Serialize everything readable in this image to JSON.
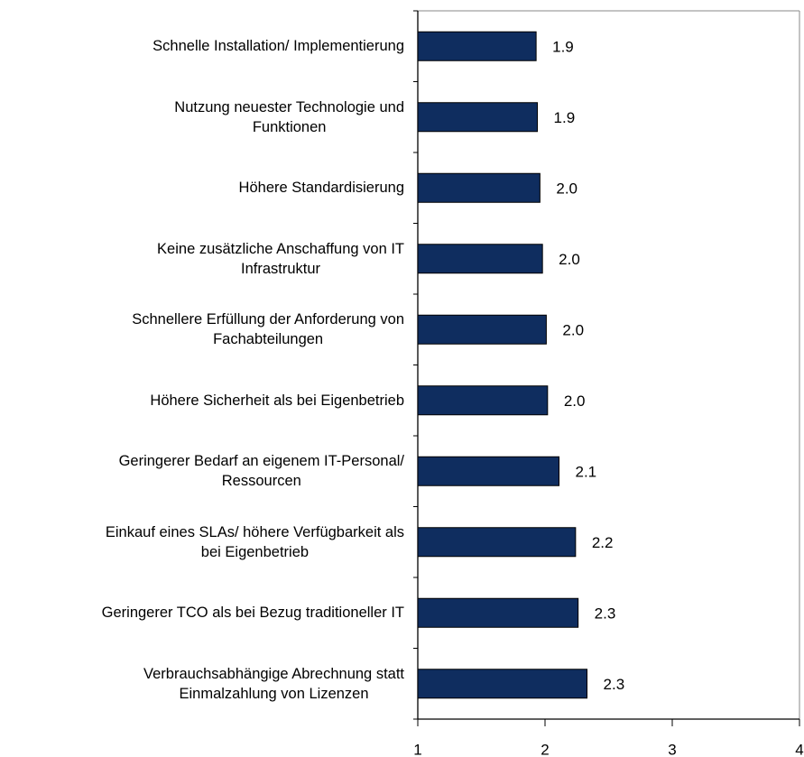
{
  "chart_data": {
    "type": "bar",
    "orientation": "horizontal",
    "categories": [
      "Schnelle Installation/ Implementierung",
      "Nutzung neuester Technologie und\nFunktionen",
      "Höhere Standardisierung",
      "Keine zusätzliche Anschaffung von IT\nInfrastruktur",
      "Schnellere Erfüllung der Anforderung von\nFachabteilungen",
      "Höhere Sicherheit als bei Eigenbetrieb",
      "Geringerer Bedarf an eigenem IT-Personal/\nRessourcen",
      "Einkauf eines SLAs/ höhere Verfügbarkeit als\nbei Eigenbetrieb",
      "Geringerer TCO als bei Bezug traditioneller IT",
      "Verbrauchsabhängige Abrechnung statt\nEinmalzahlung von Lizenzen"
    ],
    "values": [
      1.93,
      1.94,
      1.96,
      1.98,
      2.01,
      2.02,
      2.11,
      2.24,
      2.26,
      2.33
    ],
    "value_labels": [
      "1.9",
      "1.9",
      "2.0",
      "2.0",
      "2.0",
      "2.0",
      "2.1",
      "2.2",
      "2.3",
      "2.3"
    ],
    "color": "#0f2d5f",
    "xlim": [
      1,
      4
    ],
    "xticks": [
      1,
      2,
      3,
      4
    ],
    "grid": false
  }
}
